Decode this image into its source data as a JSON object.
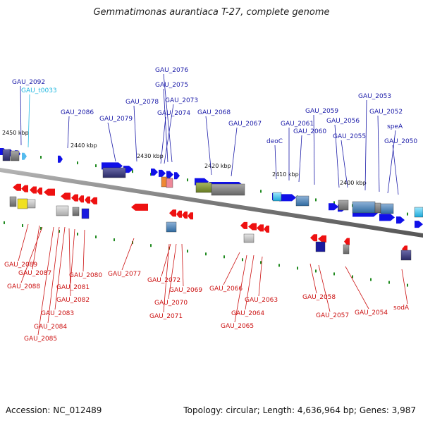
{
  "title": "Gemmatimonas aurantiaca T-27, complete genome",
  "footer": {
    "accession": "Accession: NC_012489",
    "topology": "Topology: circular; Length: 4,636,964 bp; Genes: 3,987"
  },
  "colors": {
    "forward_label": "#1a1aa8",
    "reverse_label": "#cc1111",
    "trna_label": "#22b8e0",
    "forward_gene": "#1010e8",
    "reverse_gene": "#ee1111",
    "backbone": "#888888",
    "tick": "#1f8a1f"
  },
  "scale_labels": [
    "2450 kbp",
    "2440 kbp",
    "2430 kbp",
    "2420 kbp",
    "2410 kbp",
    "2400 kbp"
  ],
  "forward_labels": [
    "GAU_2092",
    "GAU_t0033",
    "GAU_2086",
    "GAU_2079",
    "GAU_2078",
    "GAU_2076",
    "GAU_2075",
    "GAU_2073",
    "GAU_2074",
    "GAU_2068",
    "GAU_2067",
    "deoC",
    "GAU_2061",
    "GAU_2060",
    "GAU_2059",
    "GAU_2056",
    "GAU_2055",
    "GAU_2053",
    "GAU_2052",
    "speA",
    "GAU_2050"
  ],
  "reverse_labels": [
    "GAU_2089",
    "GAU_2087",
    "GAU_2088",
    "GAU_2080",
    "GAU_2081",
    "GAU_2082",
    "GAU_2083",
    "GAU_2084",
    "GAU_2085",
    "GAU_2077",
    "GAU_2072",
    "GAU_2069",
    "GAU_2070",
    "GAU_2071",
    "GAU_2066",
    "GAU_2063",
    "GAU_2064",
    "GAU_2065",
    "GAU_2058",
    "GAU_2057",
    "GAU_2054",
    "sodA"
  ]
}
